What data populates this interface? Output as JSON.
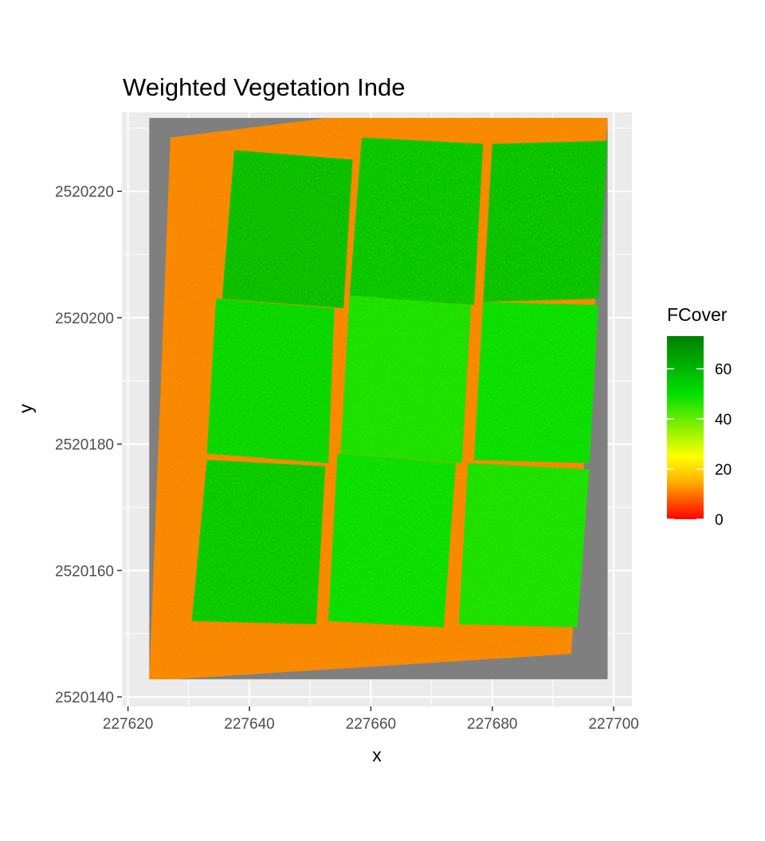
{
  "chart_data": {
    "type": "heatmap",
    "title": "Weighted Vegetation Inde",
    "xlabel": "x",
    "ylabel": "y",
    "xlim": [
      227619,
      227703
    ],
    "ylim": [
      2520138.5,
      2520232.5
    ],
    "x_ticks": [
      227620,
      227640,
      227660,
      227680,
      227700
    ],
    "y_ticks": [
      2520140,
      2520160,
      2520180,
      2520200,
      2520220
    ],
    "x_minor_ticks": [
      227630,
      227650,
      227670,
      227690
    ],
    "y_minor_ticks": [
      2520150,
      2520170,
      2520190,
      2520210,
      2520230
    ],
    "grid": true,
    "raster_extent": {
      "x": [
        227623.5,
        227699
      ],
      "y": [
        2520142.8,
        2520231.6
      ]
    },
    "raster_nodata_color": "#7f7f7f",
    "field_outline": [
      [
        227627,
        2520228.5
      ],
      [
        227653,
        2520231.6
      ],
      [
        227699,
        2520231.6
      ],
      [
        227693,
        2520146.8
      ],
      [
        227627.5,
        2520142.8
      ],
      [
        227623.5,
        2520142.8
      ]
    ],
    "plots": [
      {
        "value": 58,
        "corners": [
          [
            227637.5,
            2520226.5
          ],
          [
            227657,
            2520225
          ],
          [
            227655.5,
            2520201.5
          ],
          [
            227635.5,
            2520203
          ]
        ]
      },
      {
        "value": 56,
        "corners": [
          [
            227658.5,
            2520228.5
          ],
          [
            227678.5,
            2520227.5
          ],
          [
            227677,
            2520202
          ],
          [
            227656.5,
            2520203.5
          ]
        ]
      },
      {
        "value": 57,
        "corners": [
          [
            227680,
            2520227.5
          ],
          [
            227699,
            2520228
          ],
          [
            227697.5,
            2520203
          ],
          [
            227678.5,
            2520202.5
          ]
        ]
      },
      {
        "value": 52,
        "corners": [
          [
            227634.5,
            2520203
          ],
          [
            227654,
            2520201.5
          ],
          [
            227653,
            2520177
          ],
          [
            227633,
            2520178.5
          ]
        ]
      },
      {
        "value": 48,
        "corners": [
          [
            227656.5,
            2520203.5
          ],
          [
            227676.5,
            2520202
          ],
          [
            227675,
            2520177
          ],
          [
            227655,
            2520178.5
          ]
        ]
      },
      {
        "value": 50,
        "corners": [
          [
            227678.5,
            2520202.5
          ],
          [
            227697.5,
            2520202
          ],
          [
            227696,
            2520177
          ],
          [
            227677,
            2520177.5
          ]
        ]
      },
      {
        "value": 55,
        "corners": [
          [
            227633,
            2520177.5
          ],
          [
            227652.5,
            2520176.5
          ],
          [
            227651,
            2520151.5
          ],
          [
            227630.5,
            2520152
          ]
        ]
      },
      {
        "value": 50,
        "corners": [
          [
            227654.5,
            2520178.5
          ],
          [
            227674,
            2520177
          ],
          [
            227672,
            2520151
          ],
          [
            227653,
            2520152
          ]
        ]
      },
      {
        "value": 48,
        "corners": [
          [
            227676,
            2520177
          ],
          [
            227696,
            2520176
          ],
          [
            227694,
            2520151
          ],
          [
            227674.5,
            2520151.5
          ]
        ]
      }
    ],
    "legend": {
      "title": "FCover",
      "min": 0,
      "max": 73,
      "ticks": [
        0,
        20,
        40,
        60
      ],
      "colors": [
        "#ff0000",
        "#ffb000",
        "#ffff00",
        "#00e000",
        "#008000"
      ],
      "color_stops": [
        0,
        15,
        25,
        50,
        73
      ],
      "position": "right"
    }
  }
}
